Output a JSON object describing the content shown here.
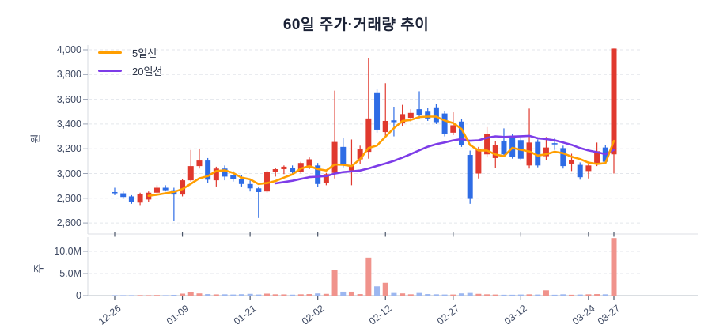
{
  "title": "60일 주가·거래량 추이",
  "legend": {
    "items": [
      {
        "label": "5일선",
        "color": "#ff9e00"
      },
      {
        "label": "20일선",
        "color": "#7d3ce8"
      }
    ]
  },
  "price_axis": {
    "unit_label": "원",
    "min": 2600,
    "max": 4000,
    "ticks": [
      {
        "label": "4,000",
        "value": 4000
      },
      {
        "label": "3,800",
        "value": 3800
      },
      {
        "label": "3,600",
        "value": 3600
      },
      {
        "label": "3,400",
        "value": 3400
      },
      {
        "label": "3,200",
        "value": 3200
      },
      {
        "label": "3,000",
        "value": 3000
      },
      {
        "label": "2,800",
        "value": 2800
      },
      {
        "label": "2,600",
        "value": 2600
      }
    ]
  },
  "volume_axis": {
    "unit_label": "주",
    "ticks": [
      {
        "label": "10.0M",
        "value": 10
      },
      {
        "label": "5.0M",
        "value": 5
      },
      {
        "label": "0",
        "value": 0
      }
    ]
  },
  "x_axis": {
    "ticks": [
      {
        "label": "12-26",
        "index": 0
      },
      {
        "label": "01-09",
        "index": 8
      },
      {
        "label": "01-21",
        "index": 16
      },
      {
        "label": "02-02",
        "index": 24
      },
      {
        "label": "02-12",
        "index": 32
      },
      {
        "label": "02-27",
        "index": 40
      },
      {
        "label": "03-12",
        "index": 48
      },
      {
        "label": "03-24",
        "index": 56
      },
      {
        "label": "03-27",
        "index": 59
      }
    ]
  },
  "chart_data": {
    "type": "candlestick+volume",
    "title": "60일 주가·거래량 추이",
    "price_range": [
      2600,
      4000
    ],
    "volume_range_millions": [
      0,
      13
    ],
    "grid": true,
    "legend_position": "top-left",
    "colors": {
      "up": "#e0392e",
      "down": "#2e6ce5",
      "volume_up": "#f0938c",
      "volume_down": "#9cb7f0",
      "ma5": "#ff9e00",
      "ma20": "#7d3ce8"
    },
    "series": [
      {
        "name": "5일선",
        "type": "moving-average",
        "window": 5
      },
      {
        "name": "20일선",
        "type": "moving-average",
        "window": 20
      }
    ],
    "candles_format": [
      "open",
      "high",
      "low",
      "close",
      "volume_millions"
    ],
    "candles": [
      [
        2850,
        2885,
        2825,
        2840,
        0.1
      ],
      [
        2840,
        2855,
        2795,
        2810,
        0.08
      ],
      [
        2815,
        2825,
        2755,
        2770,
        0.09
      ],
      [
        2765,
        2845,
        2745,
        2835,
        0.12
      ],
      [
        2790,
        2855,
        2770,
        2845,
        0.1
      ],
      [
        2845,
        2905,
        2825,
        2885,
        0.14
      ],
      [
        2885,
        2905,
        2855,
        2865,
        0.1
      ],
      [
        2865,
        2885,
        2620,
        2830,
        0.18
      ],
      [
        2830,
        2955,
        2815,
        2945,
        0.45
      ],
      [
        2945,
        3190,
        2935,
        3060,
        0.8
      ],
      [
        3060,
        3195,
        3040,
        3105,
        0.5
      ],
      [
        3105,
        3125,
        2925,
        2950,
        0.35
      ],
      [
        2945,
        3055,
        2895,
        3040,
        0.28
      ],
      [
        3040,
        3065,
        2945,
        2975,
        0.3
      ],
      [
        2985,
        3020,
        2935,
        2955,
        0.25
      ],
      [
        2955,
        2985,
        2895,
        2915,
        0.32
      ],
      [
        2915,
        2945,
        2855,
        2880,
        0.4
      ],
      [
        2880,
        2895,
        2640,
        2850,
        0.25
      ],
      [
        2855,
        3025,
        2845,
        3015,
        0.45
      ],
      [
        3015,
        3045,
        2975,
        3035,
        0.3
      ],
      [
        3035,
        3065,
        2995,
        3055,
        0.28
      ],
      [
        3045,
        3065,
        3000,
        3010,
        0.22
      ],
      [
        3010,
        3095,
        3000,
        3085,
        0.3
      ],
      [
        3050,
        3130,
        3035,
        3115,
        0.35
      ],
      [
        3065,
        3085,
        2890,
        2915,
        0.5
      ],
      [
        2925,
        3005,
        2905,
        2995,
        0.4
      ],
      [
        3005,
        3670,
        2960,
        3255,
        5.8
      ],
      [
        3215,
        3285,
        3050,
        3070,
        0.9
      ],
      [
        3025,
        3275,
        2905,
        3065,
        0.9
      ],
      [
        3115,
        3225,
        3080,
        3195,
        0.35
      ],
      [
        3175,
        3930,
        3120,
        3445,
        8.6
      ],
      [
        3650,
        3685,
        3330,
        3355,
        2.1
      ],
      [
        3335,
        3730,
        3305,
        3425,
        2.9
      ],
      [
        3430,
        3540,
        3300,
        3415,
        0.6
      ],
      [
        3405,
        3555,
        3380,
        3480,
        0.5
      ],
      [
        3450,
        3520,
        3420,
        3490,
        0.3
      ],
      [
        3520,
        3665,
        3445,
        3470,
        0.6
      ],
      [
        3500,
        3530,
        3425,
        3445,
        0.35
      ],
      [
        3535,
        3560,
        3400,
        3415,
        0.3
      ],
      [
        3485,
        3505,
        3300,
        3320,
        0.25
      ],
      [
        3330,
        3495,
        3310,
        3390,
        0.25
      ],
      [
        3420,
        3440,
        3215,
        3230,
        0.5
      ],
      [
        3150,
        3185,
        2755,
        2795,
        0.6
      ],
      [
        3000,
        3215,
        2960,
        3195,
        0.4
      ],
      [
        3155,
        3375,
        3130,
        3320,
        0.3
      ],
      [
        3125,
        3260,
        3045,
        3230,
        0.25
      ],
      [
        3265,
        3365,
        3140,
        3155,
        0.2
      ],
      [
        3300,
        3320,
        3120,
        3135,
        0.2
      ],
      [
        3270,
        3290,
        3105,
        3120,
        0.25
      ],
      [
        3065,
        3525,
        3040,
        3250,
        0.3
      ],
      [
        3255,
        3275,
        3050,
        3065,
        0.25
      ],
      [
        3140,
        3295,
        3110,
        3210,
        1.2
      ],
      [
        3245,
        3290,
        3190,
        3235,
        0.2
      ],
      [
        3205,
        3225,
        3040,
        3060,
        0.3
      ],
      [
        3080,
        3160,
        3020,
        3110,
        0.2
      ],
      [
        3070,
        3090,
        2950,
        2970,
        0.25
      ],
      [
        3020,
        3080,
        2960,
        3065,
        0.3
      ],
      [
        3085,
        3250,
        3060,
        3180,
        0.35
      ],
      [
        3210,
        3230,
        3080,
        3095,
        0.3
      ],
      [
        3155,
        4010,
        3000,
        4010,
        13.0
      ]
    ]
  }
}
